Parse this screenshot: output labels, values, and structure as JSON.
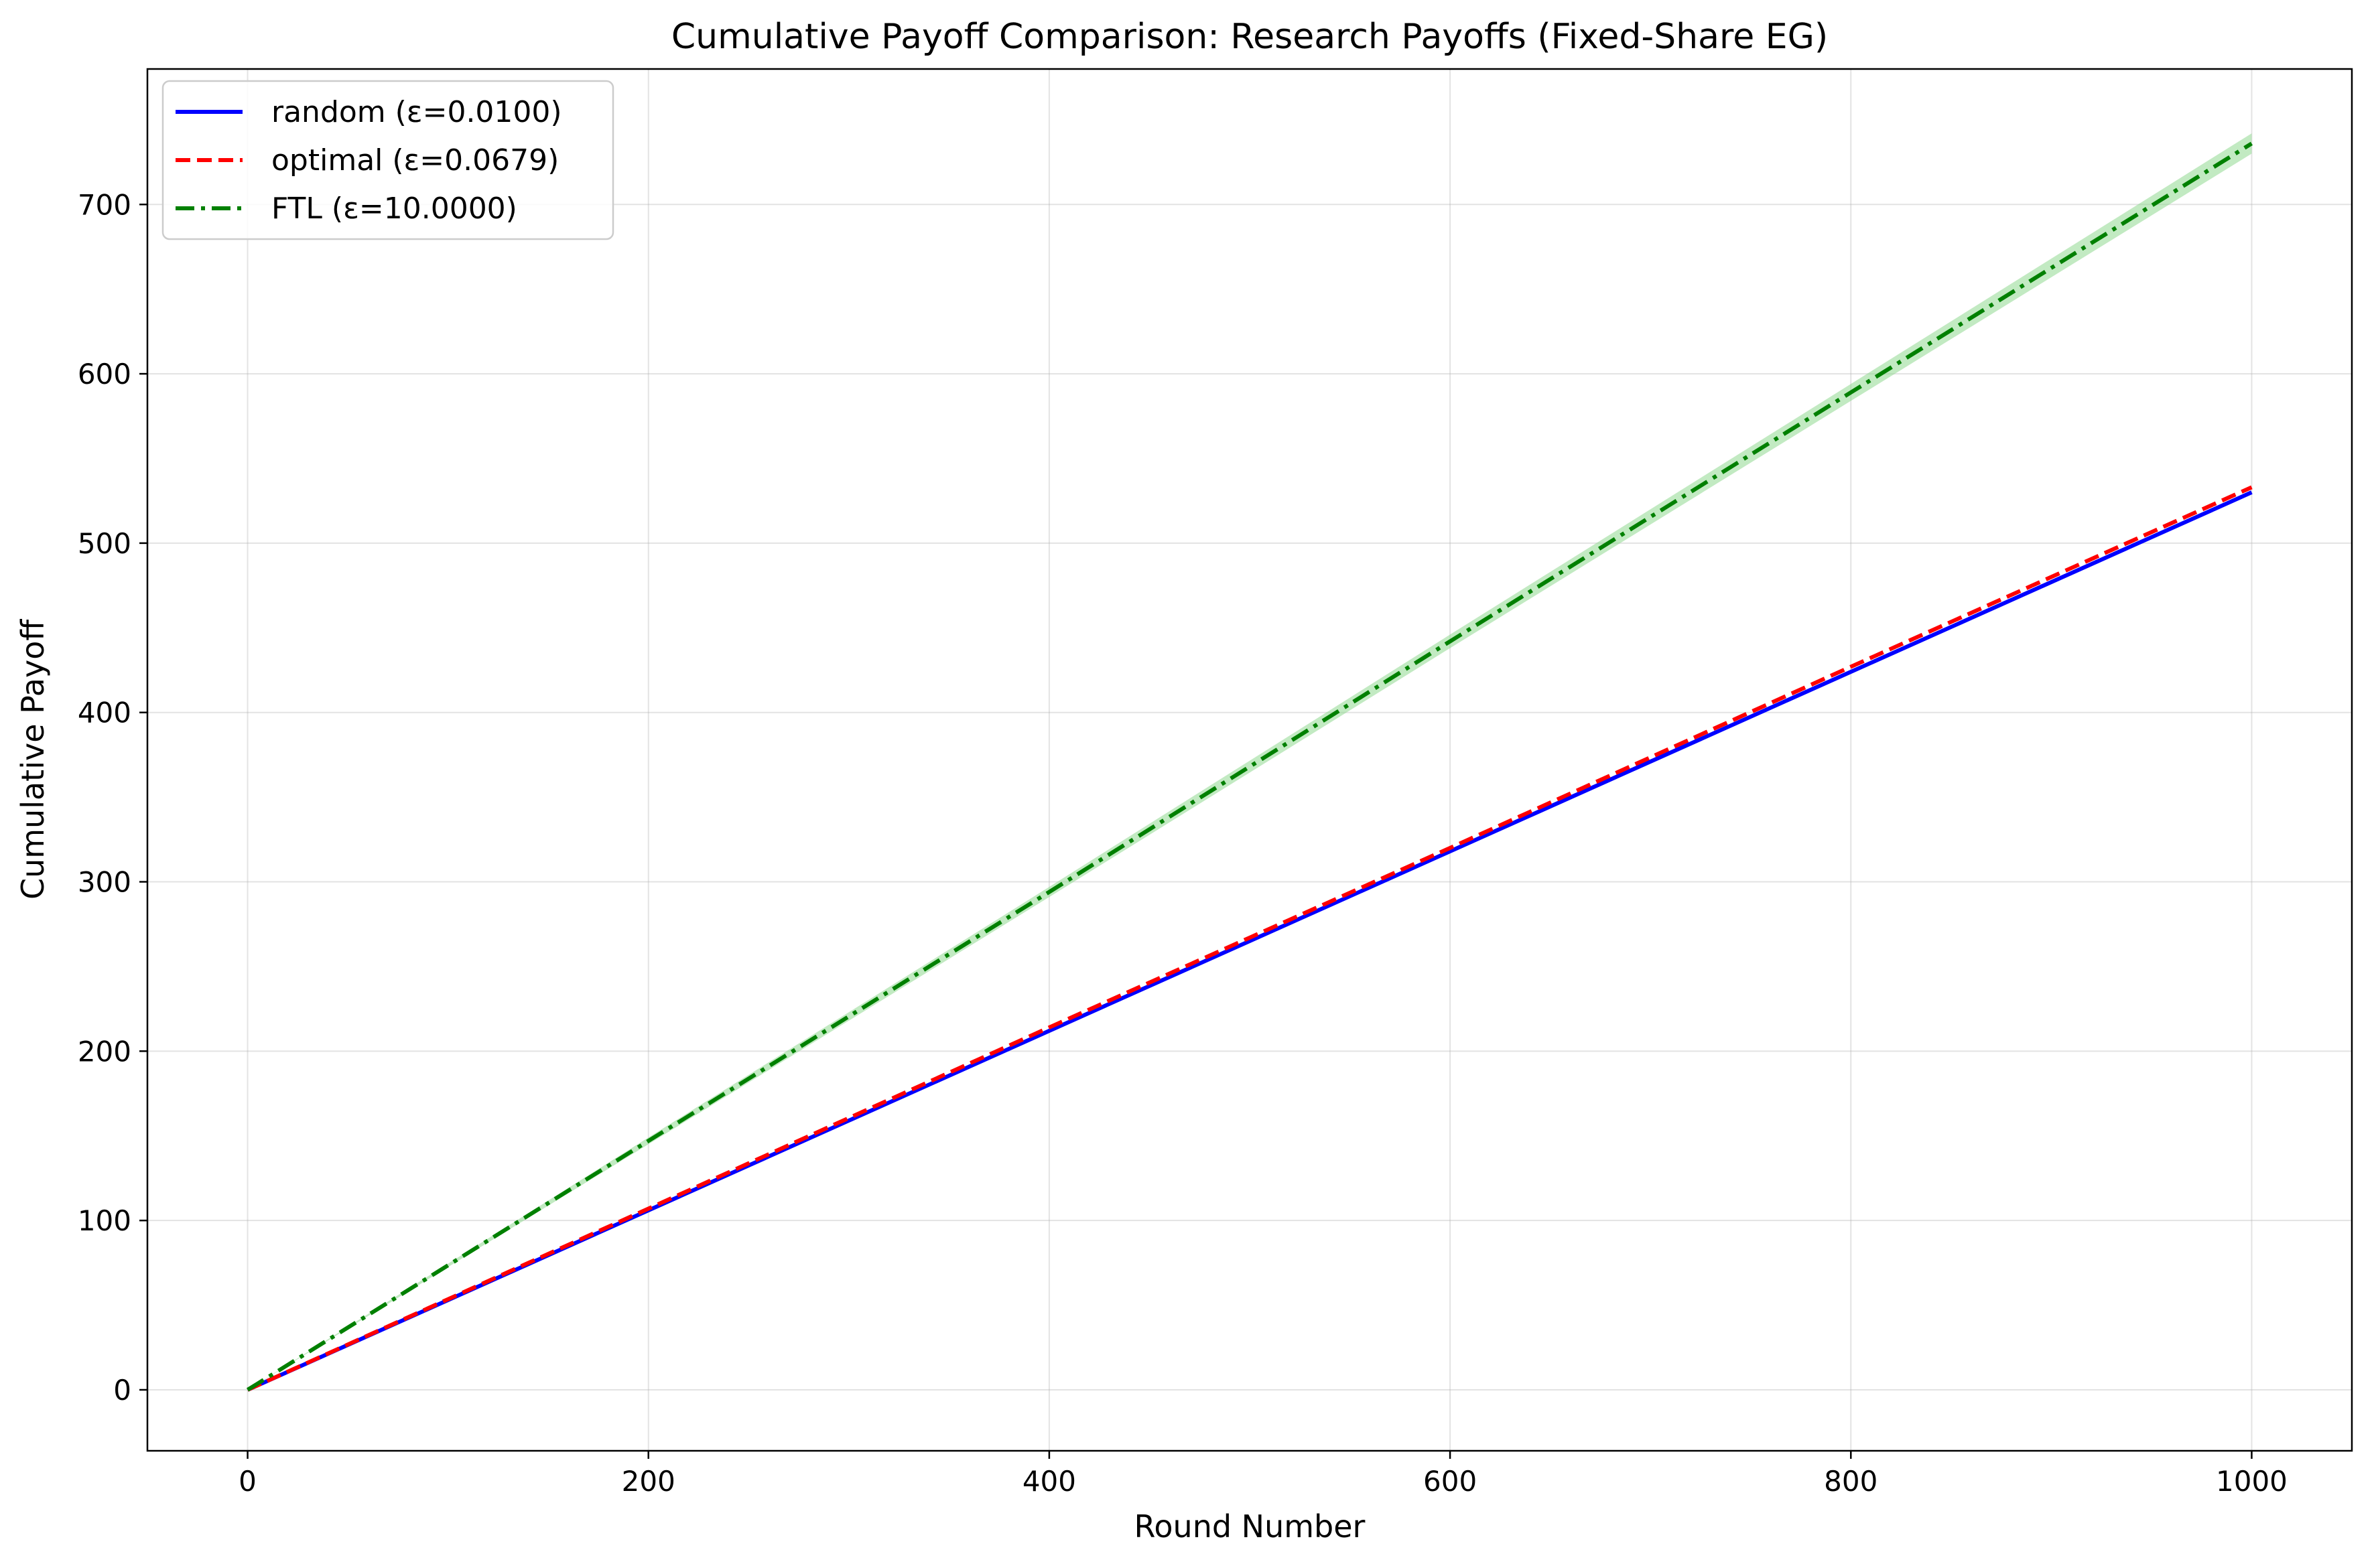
{
  "chart_data": {
    "type": "line",
    "title": "Cumulative Payoff Comparison: Research Payoffs (Fixed-Share EG)",
    "xlabel": "Round Number",
    "ylabel": "Cumulative Payoff",
    "xlim": [
      -50,
      1050
    ],
    "ylim": [
      -36,
      780
    ],
    "xticks": [
      0,
      200,
      400,
      600,
      800,
      1000
    ],
    "yticks": [
      0,
      100,
      200,
      300,
      400,
      500,
      600,
      700
    ],
    "grid": true,
    "legend_position": "top-left",
    "series": [
      {
        "name": "random (ε=0.0100)",
        "color": "#0000ff",
        "style": "solid",
        "x": [
          0,
          200,
          400,
          600,
          800,
          1000
        ],
        "values": [
          0,
          106,
          212,
          318,
          424,
          530
        ],
        "band": null
      },
      {
        "name": "optimal (ε=0.0679)",
        "color": "#ff0000",
        "style": "dashed",
        "x": [
          0,
          200,
          400,
          600,
          800,
          1000
        ],
        "values": [
          0,
          107,
          214,
          320,
          427,
          533
        ],
        "band": null
      },
      {
        "name": "FTL (ε=10.0000)",
        "color": "#008000",
        "style": "dashdot",
        "band_color": "#90d890",
        "x": [
          0,
          200,
          400,
          600,
          800,
          1000
        ],
        "values": [
          0,
          147,
          294,
          442,
          589,
          736
        ],
        "band": [
          [
            0,
            0
          ],
          [
            145,
            149
          ],
          [
            291,
            297
          ],
          [
            438,
            446
          ],
          [
            584,
            594
          ],
          [
            730,
            742
          ]
        ]
      }
    ]
  }
}
